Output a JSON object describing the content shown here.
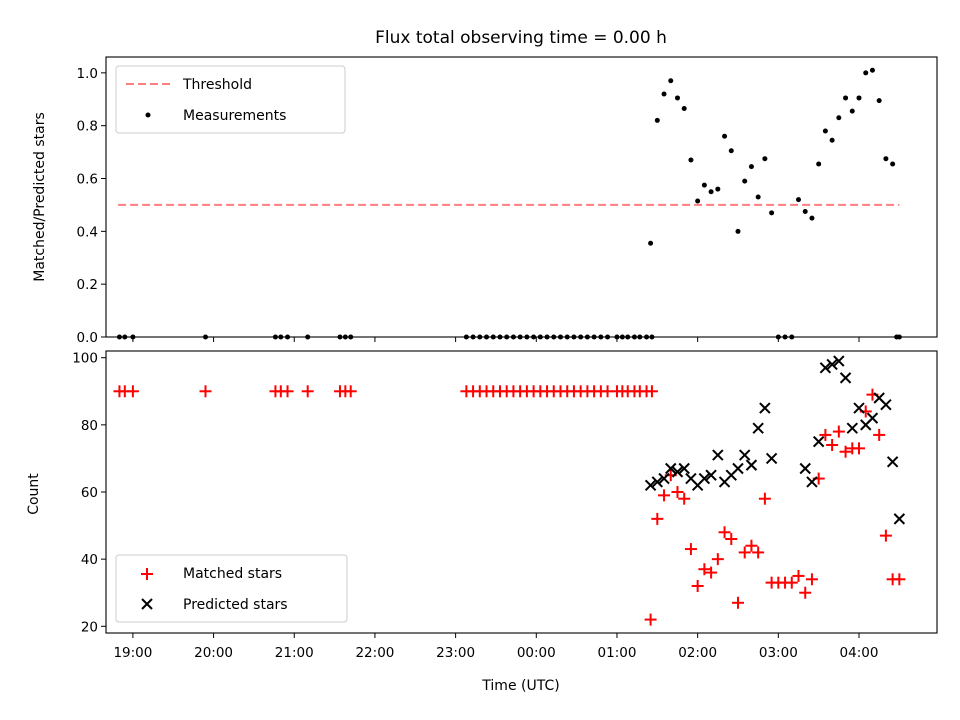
{
  "chart_data": [
    {
      "type": "scatter",
      "title": "Flux total observing time = 0.00 h",
      "xlabel": "",
      "ylabel": "Matched/Predicted stars",
      "xlim": [
        "18:40",
        "04:58"
      ],
      "ylim": [
        0,
        1.06
      ],
      "yticks": [
        "0.0",
        "0.2",
        "0.4",
        "0.6",
        "0.8",
        "1.0"
      ],
      "legend_position": "top-left",
      "series": [
        {
          "name": "Threshold",
          "style": "dashed-line",
          "color": "#ff7f7f",
          "x": [
            "18:49",
            "04:30"
          ],
          "y": [
            0.5,
            0.5
          ]
        },
        {
          "name": "Measurements",
          "style": "dots",
          "color": "#000000",
          "x": [
            "18:50",
            "18:54",
            "19:00",
            "19:54",
            "20:46",
            "20:50",
            "20:55",
            "21:10",
            "21:34",
            "21:38",
            "21:42",
            "23:08",
            "23:13",
            "23:18",
            "23:23",
            "23:28",
            "23:33",
            "23:38",
            "23:43",
            "23:48",
            "23:53",
            "23:58",
            "00:03",
            "00:08",
            "00:13",
            "00:18",
            "00:23",
            "00:28",
            "00:33",
            "00:38",
            "00:43",
            "00:48",
            "00:53",
            "01:00",
            "01:04",
            "01:08",
            "01:13",
            "01:17",
            "01:22",
            "01:26",
            "01:25",
            "01:30",
            "01:35",
            "01:40",
            "01:45",
            "01:50",
            "01:55",
            "02:00",
            "02:05",
            "02:10",
            "02:15",
            "02:20",
            "02:25",
            "02:30",
            "02:35",
            "02:40",
            "02:45",
            "02:50",
            "02:55",
            "03:00",
            "03:05",
            "03:10",
            "03:15",
            "03:20",
            "03:25",
            "03:30",
            "03:35",
            "03:40",
            "03:45",
            "03:50",
            "03:55",
            "04:00",
            "04:05",
            "04:10",
            "04:15",
            "04:20",
            "04:25",
            "04:28",
            "04:30"
          ],
          "y": [
            0,
            0,
            0,
            0,
            0,
            0,
            0,
            0,
            0,
            0,
            0,
            0,
            0,
            0,
            0,
            0,
            0,
            0,
            0,
            0,
            0,
            0,
            0,
            0,
            0,
            0,
            0,
            0,
            0,
            0,
            0,
            0,
            0,
            0,
            0,
            0,
            0,
            0,
            0,
            0,
            0.355,
            0.82,
            0.92,
            0.97,
            0.905,
            0.865,
            0.67,
            0.515,
            0.575,
            0.55,
            0.56,
            0.76,
            0.705,
            0.4,
            0.59,
            0.645,
            0.53,
            0.675,
            0.47,
            0,
            0,
            0,
            0.52,
            0.475,
            0.45,
            0.655,
            0.78,
            0.745,
            0.83,
            0.905,
            0.855,
            0.905,
            1.0,
            1.01,
            0.895,
            0.675,
            0.655,
            0,
            0
          ]
        }
      ]
    },
    {
      "type": "scatter",
      "title": "",
      "xlabel": "Time (UTC)",
      "ylabel": "Count",
      "xlim": [
        "18:40",
        "04:58"
      ],
      "ylim": [
        18,
        102
      ],
      "yticks": [
        "20",
        "40",
        "60",
        "80",
        "100"
      ],
      "xticks": [
        "19:00",
        "20:00",
        "21:00",
        "22:00",
        "23:00",
        "00:00",
        "01:00",
        "02:00",
        "03:00",
        "04:00"
      ],
      "legend_position": "bottom-left",
      "series": [
        {
          "name": "Matched stars",
          "marker": "plus",
          "color": "#ff0000",
          "x": [
            "18:50",
            "18:54",
            "19:00",
            "19:54",
            "20:46",
            "20:50",
            "20:55",
            "21:10",
            "21:34",
            "21:38",
            "21:42",
            "23:08",
            "23:13",
            "23:18",
            "23:23",
            "23:28",
            "23:33",
            "23:38",
            "23:43",
            "23:48",
            "23:53",
            "23:58",
            "00:03",
            "00:08",
            "00:13",
            "00:18",
            "00:23",
            "00:28",
            "00:33",
            "00:38",
            "00:43",
            "00:48",
            "00:53",
            "01:00",
            "01:04",
            "01:08",
            "01:13",
            "01:17",
            "01:22",
            "01:26",
            "01:25",
            "01:30",
            "01:35",
            "01:40",
            "01:45",
            "01:50",
            "01:55",
            "02:00",
            "02:05",
            "02:10",
            "02:15",
            "02:20",
            "02:25",
            "02:30",
            "02:35",
            "02:40",
            "02:45",
            "02:50",
            "02:55",
            "03:00",
            "03:05",
            "03:10",
            "03:15",
            "03:20",
            "03:25",
            "03:30",
            "03:35",
            "03:40",
            "03:45",
            "03:50",
            "03:55",
            "04:00",
            "04:05",
            "04:10",
            "04:15",
            "04:20",
            "04:25",
            "04:30"
          ],
          "y": [
            90,
            90,
            90,
            90,
            90,
            90,
            90,
            90,
            90,
            90,
            90,
            90,
            90,
            90,
            90,
            90,
            90,
            90,
            90,
            90,
            90,
            90,
            90,
            90,
            90,
            90,
            90,
            90,
            90,
            90,
            90,
            90,
            90,
            90,
            90,
            90,
            90,
            90,
            90,
            90,
            22,
            52,
            59,
            65,
            60,
            58,
            43,
            32,
            37,
            36,
            40,
            48,
            46,
            27,
            42,
            44,
            42,
            58,
            33,
            33,
            33,
            33,
            35,
            30,
            34,
            64,
            77,
            74,
            78,
            72,
            73,
            73,
            84,
            89,
            77,
            47,
            34,
            34
          ]
        },
        {
          "name": "Predicted stars",
          "marker": "x",
          "color": "#000000",
          "x": [
            "01:25",
            "01:30",
            "01:35",
            "01:40",
            "01:45",
            "01:50",
            "01:55",
            "02:00",
            "02:05",
            "02:10",
            "02:15",
            "02:20",
            "02:25",
            "02:30",
            "02:35",
            "02:40",
            "02:45",
            "02:50",
            "02:55",
            "03:20",
            "03:25",
            "03:30",
            "03:35",
            "03:40",
            "03:45",
            "03:50",
            "03:55",
            "04:00",
            "04:05",
            "04:10",
            "04:15",
            "04:20",
            "04:25",
            "04:30"
          ],
          "y": [
            62,
            63,
            64,
            67,
            66,
            67,
            64,
            62,
            64,
            65,
            71,
            63,
            65,
            67,
            71,
            68,
            79,
            85,
            70,
            67,
            63,
            75,
            97,
            98,
            99,
            94,
            79,
            85,
            80,
            82,
            88,
            86,
            69,
            52
          ]
        }
      ]
    }
  ]
}
